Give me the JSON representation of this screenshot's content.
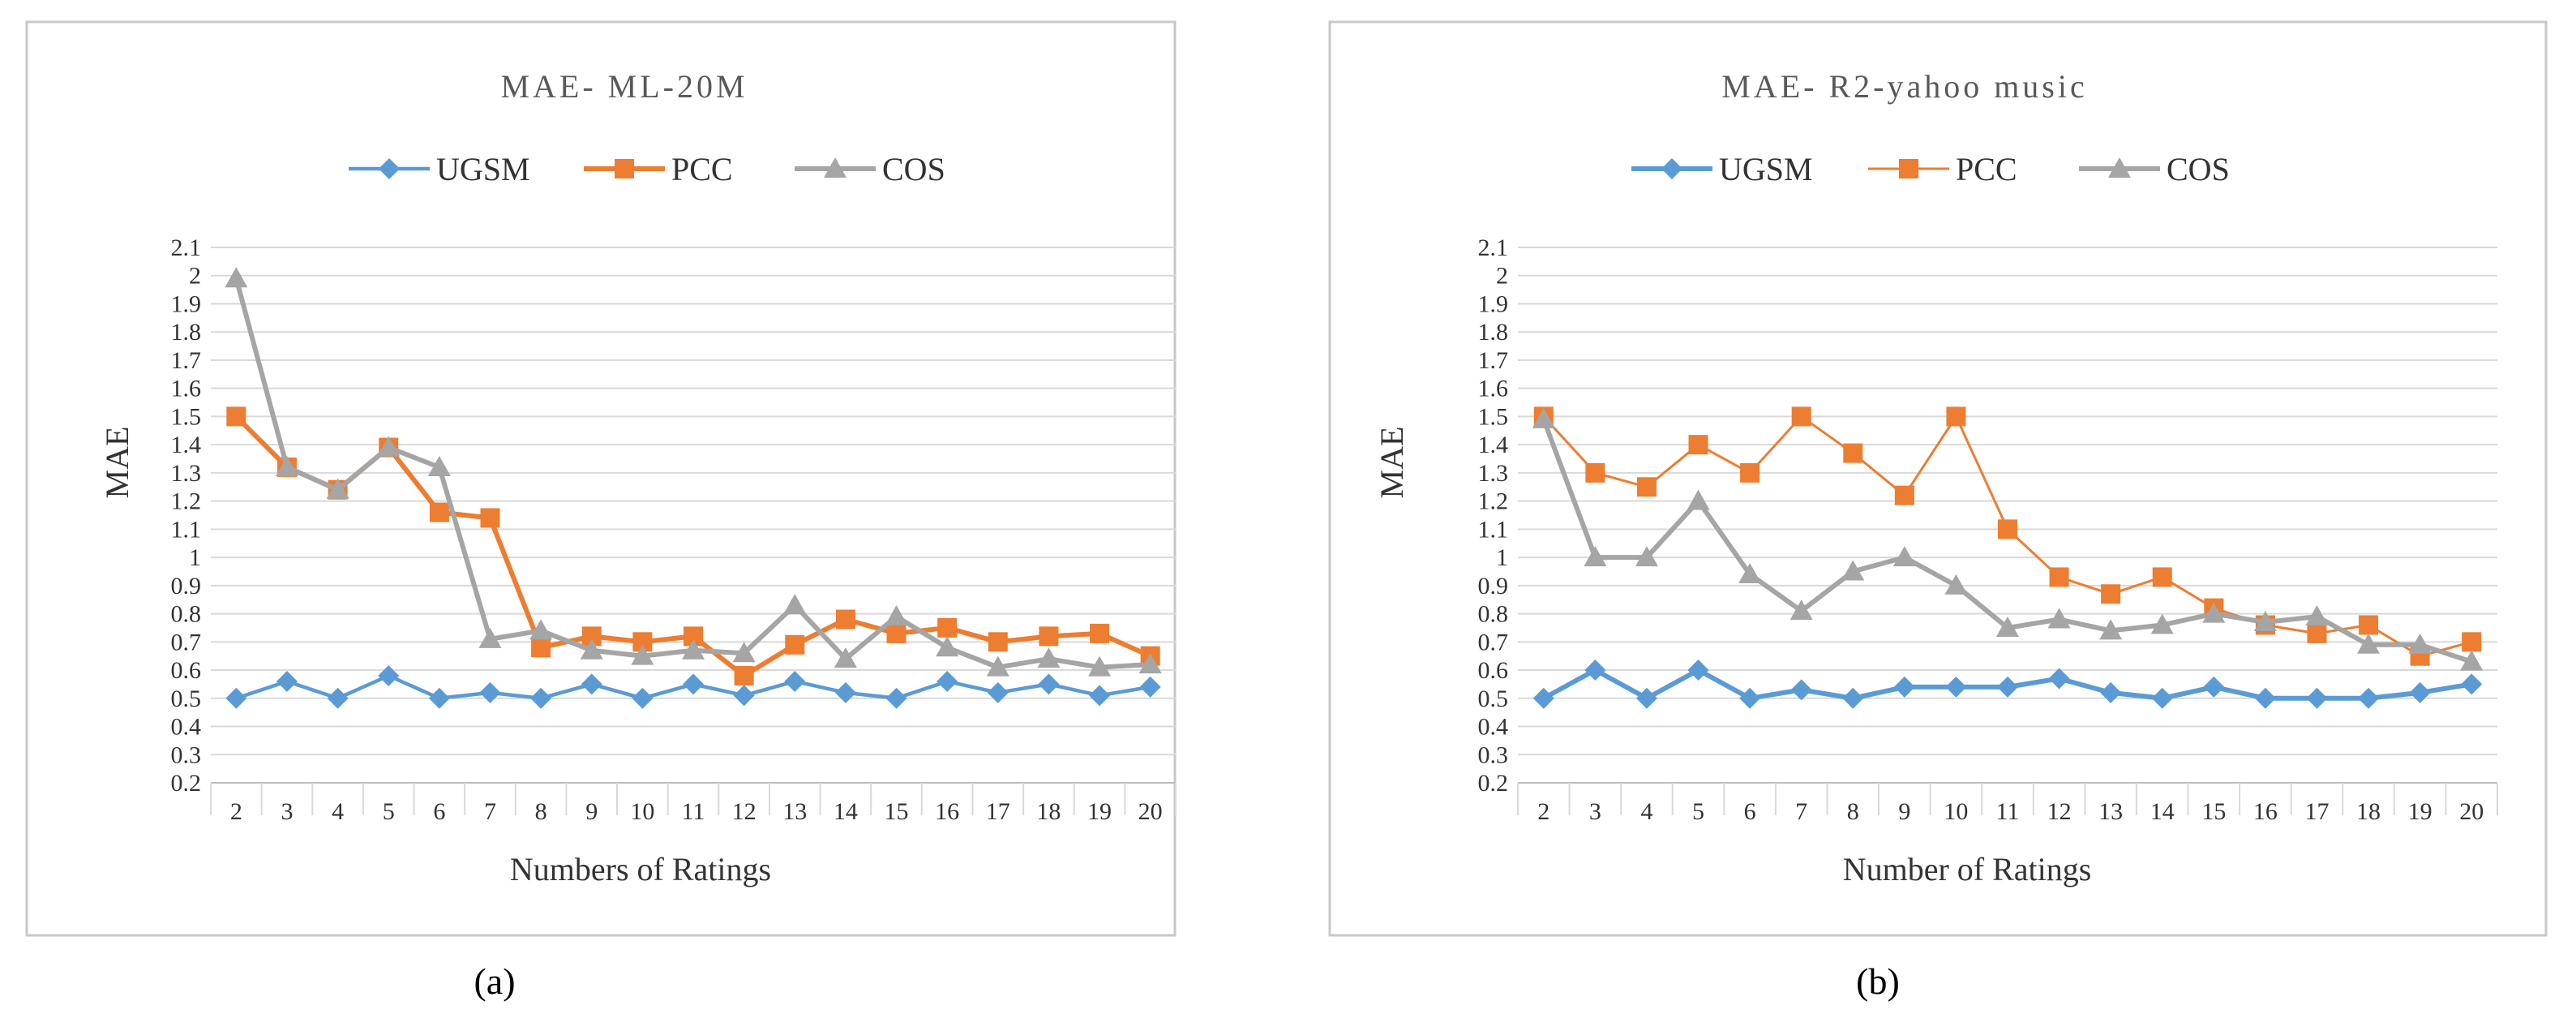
{
  "chart_data": [
    {
      "type": "line",
      "caption": "(a)",
      "title": "MAE- ML-20M",
      "xlabel": "Numbers of Ratings",
      "ylabel": "MAE",
      "categories": [
        "2",
        "3",
        "4",
        "5",
        "6",
        "7",
        "8",
        "9",
        "10",
        "11",
        "12",
        "13",
        "14",
        "15",
        "16",
        "17",
        "18",
        "19",
        "20"
      ],
      "ylim": [
        0.2,
        2.1
      ],
      "yticks": [
        "0.2",
        "0.3",
        "0.4",
        "0.5",
        "0.6",
        "0.7",
        "0.8",
        "0.9",
        "1",
        "1.1",
        "1.2",
        "1.3",
        "1.4",
        "1.5",
        "1.6",
        "1.7",
        "1.8",
        "1.9",
        "2",
        "2.1"
      ],
      "legend_position": "top",
      "grid": true,
      "series": [
        {
          "name": "UGSM",
          "color": "#5b9bd5",
          "marker": "diamond",
          "stroke_style": "medium",
          "values": [
            0.5,
            0.56,
            0.5,
            0.58,
            0.5,
            0.52,
            0.5,
            0.55,
            0.5,
            0.55,
            0.51,
            0.56,
            0.52,
            0.5,
            0.56,
            0.52,
            0.55,
            0.51,
            0.54
          ]
        },
        {
          "name": "PCC",
          "color": "#ed7d31",
          "marker": "square",
          "stroke_style": "thick",
          "values": [
            1.5,
            1.32,
            1.24,
            1.39,
            1.16,
            1.14,
            0.68,
            0.72,
            0.7,
            0.72,
            0.58,
            0.69,
            0.78,
            0.73,
            0.75,
            0.7,
            0.72,
            0.73,
            0.65
          ]
        },
        {
          "name": "COS",
          "color": "#a5a5a5",
          "marker": "triangle",
          "stroke_style": "thick",
          "values": [
            1.99,
            1.32,
            1.24,
            1.39,
            1.32,
            0.71,
            0.74,
            0.67,
            0.65,
            0.67,
            0.66,
            0.83,
            0.64,
            0.79,
            0.68,
            0.61,
            0.64,
            0.61,
            0.62
          ]
        }
      ]
    },
    {
      "type": "line",
      "caption": "(b)",
      "title": "MAE- R2-yahoo music",
      "xlabel": "Number of Ratings",
      "ylabel": "MAE",
      "categories": [
        "2",
        "3",
        "4",
        "5",
        "6",
        "7",
        "8",
        "9",
        "10",
        "11",
        "12",
        "13",
        "14",
        "15",
        "16",
        "17",
        "18",
        "19",
        "20"
      ],
      "ylim": [
        0.2,
        2.1
      ],
      "yticks": [
        "0.2",
        "0.3",
        "0.4",
        "0.5",
        "0.6",
        "0.7",
        "0.8",
        "0.9",
        "1",
        "1.1",
        "1.2",
        "1.3",
        "1.4",
        "1.5",
        "1.6",
        "1.7",
        "1.8",
        "1.9",
        "2",
        "2.1"
      ],
      "legend_position": "top",
      "grid": true,
      "series": [
        {
          "name": "UGSM",
          "color": "#5b9bd5",
          "marker": "diamond",
          "stroke_style": "thick",
          "values": [
            0.5,
            0.6,
            0.5,
            0.6,
            0.5,
            0.53,
            0.5,
            0.54,
            0.54,
            0.54,
            0.57,
            0.52,
            0.5,
            0.54,
            0.5,
            0.5,
            0.5,
            0.52,
            0.55
          ]
        },
        {
          "name": "PCC",
          "color": "#ed7d31",
          "marker": "square",
          "stroke_style": "thin",
          "values": [
            1.5,
            1.3,
            1.25,
            1.4,
            1.3,
            1.5,
            1.37,
            1.22,
            1.5,
            1.1,
            0.93,
            0.87,
            0.93,
            0.82,
            0.76,
            0.73,
            0.76,
            0.65,
            0.7
          ]
        },
        {
          "name": "COS",
          "color": "#a5a5a5",
          "marker": "triangle",
          "stroke_style": "thick",
          "values": [
            1.49,
            1.0,
            1.0,
            1.2,
            0.94,
            0.81,
            0.95,
            1.0,
            0.9,
            0.75,
            0.78,
            0.74,
            0.76,
            0.8,
            0.77,
            0.79,
            0.69,
            0.69,
            0.63
          ]
        }
      ]
    }
  ]
}
